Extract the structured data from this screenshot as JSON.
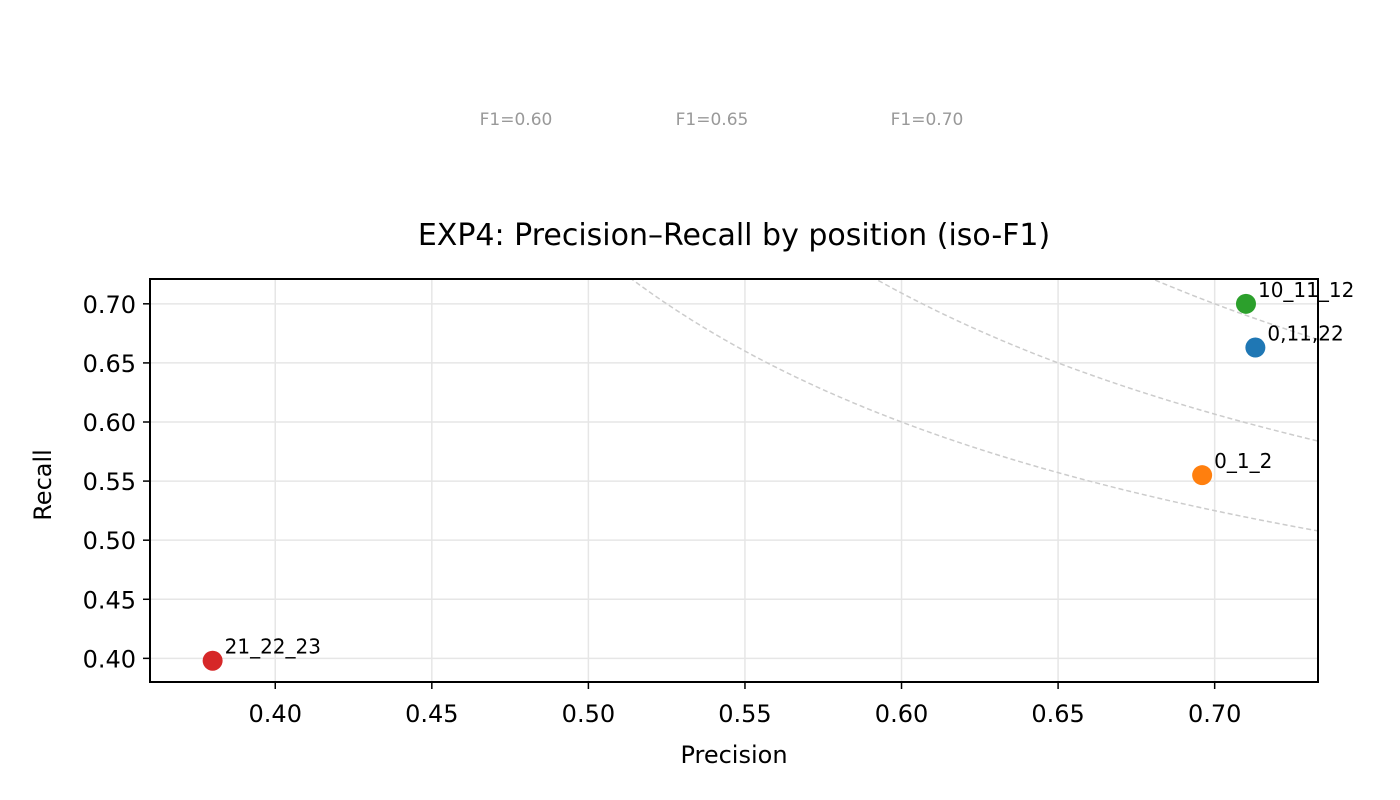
{
  "chart_data": {
    "type": "scatter",
    "title": "EXP4: Precision–Recall by position (iso-F1)",
    "xlabel": "Precision",
    "ylabel": "Recall",
    "xlim": [
      0.36,
      0.733
    ],
    "ylim": [
      0.38,
      0.721
    ],
    "xticks": [
      0.4,
      0.45,
      0.5,
      0.55,
      0.6,
      0.65,
      0.7
    ],
    "xtick_labels": [
      "0.40",
      "0.45",
      "0.50",
      "0.55",
      "0.60",
      "0.65",
      "0.70"
    ],
    "yticks": [
      0.4,
      0.45,
      0.5,
      0.55,
      0.6,
      0.65,
      0.7
    ],
    "ytick_labels": [
      "0.40",
      "0.45",
      "0.50",
      "0.55",
      "0.60",
      "0.65",
      "0.70"
    ],
    "grid": true,
    "points": [
      {
        "label": "0,11,22",
        "x": 0.713,
        "y": 0.663,
        "color": "#1f77b4"
      },
      {
        "label": "0_1_2",
        "x": 0.696,
        "y": 0.555,
        "color": "#ff7f0e"
      },
      {
        "label": "10_11_12",
        "x": 0.71,
        "y": 0.7,
        "color": "#2ca02c"
      },
      {
        "label": "21_22_23",
        "x": 0.38,
        "y": 0.398,
        "color": "#d62728"
      }
    ],
    "iso_f1": [
      {
        "f1": 0.6,
        "label": "F1=0.60"
      },
      {
        "f1": 0.65,
        "label": "F1=0.65"
      },
      {
        "f1": 0.7,
        "label": "F1=0.70"
      }
    ],
    "iso_line_color": "#cccccc",
    "iso_label_color": "#999999"
  }
}
